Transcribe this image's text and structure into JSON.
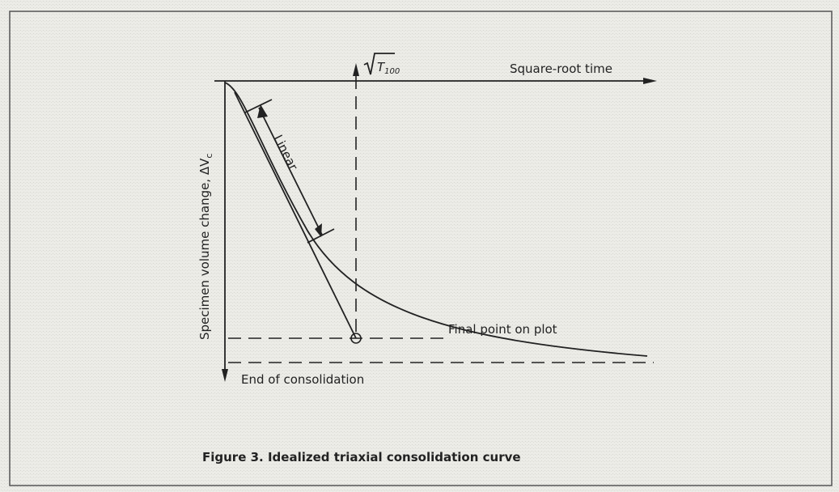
{
  "diagram": {
    "time_marker": {
      "symbol": "T",
      "subscript": "100"
    },
    "x_axis_label": "Square-root time",
    "y_axis_label": {
      "text": "Specimen volume change, ΔV",
      "subscript": "c"
    },
    "linear_label": "Linear",
    "final_point_label": "Final point on plot",
    "end_label": "End of consolidation",
    "caption": "Figure 3. Idealized triaxial consolidation curve"
  }
}
